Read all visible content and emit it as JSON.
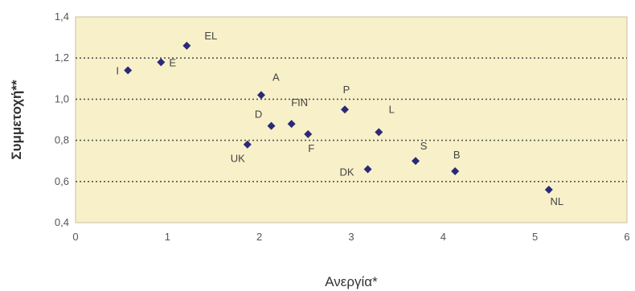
{
  "chart_data": {
    "type": "scatter",
    "xlabel": "Ανεργία*",
    "ylabel": "Συμμετοχή**",
    "xlim": [
      0,
      6
    ],
    "ylim": [
      0.4,
      1.4
    ],
    "x_ticks": [
      "0",
      "1",
      "2",
      "3",
      "4",
      "5",
      "6"
    ],
    "y_ticks": [
      "0,4",
      "0,6",
      "0,8",
      "1,0",
      "1,2",
      "1,4"
    ],
    "grid": "horizontal-dotted",
    "colors": {
      "plot_bg": "#f8f0c8",
      "marker": "#2a2a78",
      "grid": "#555555"
    },
    "points": [
      {
        "label": "I",
        "x": 0.57,
        "y": 1.14
      },
      {
        "label": "E",
        "x": 0.93,
        "y": 1.18
      },
      {
        "label": "EL",
        "x": 1.21,
        "y": 1.26
      },
      {
        "label": "A",
        "x": 2.02,
        "y": 1.02
      },
      {
        "label": "D",
        "x": 2.13,
        "y": 0.87
      },
      {
        "label": "FIN",
        "x": 2.35,
        "y": 0.88
      },
      {
        "label": "F",
        "x": 2.53,
        "y": 0.83
      },
      {
        "label": "UK",
        "x": 1.87,
        "y": 0.78
      },
      {
        "label": "P",
        "x": 2.93,
        "y": 0.95
      },
      {
        "label": "L",
        "x": 3.3,
        "y": 0.84
      },
      {
        "label": "DK",
        "x": 3.18,
        "y": 0.66
      },
      {
        "label": "S",
        "x": 3.7,
        "y": 0.7
      },
      {
        "label": "B",
        "x": 4.13,
        "y": 0.65
      },
      {
        "label": "NL",
        "x": 5.15,
        "y": 0.56
      }
    ]
  }
}
